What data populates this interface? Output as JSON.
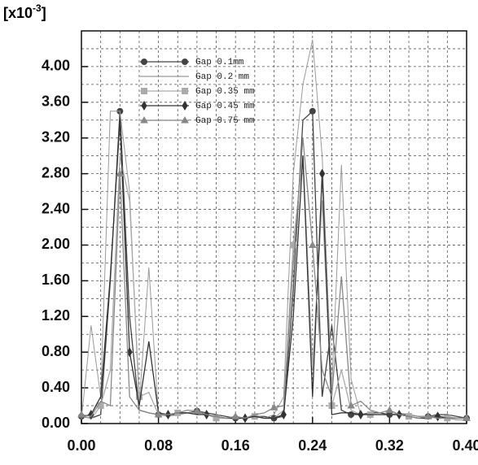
{
  "chart_data": {
    "type": "line",
    "y_label_prefix": "[x10",
    "y_label_exponent": "-3",
    "y_label_suffix": "]",
    "x": [
      0,
      0.01,
      0.02,
      0.03,
      0.04,
      0.05,
      0.06,
      0.07,
      0.08,
      0.09,
      0.1,
      0.11,
      0.12,
      0.13,
      0.14,
      0.15,
      0.16,
      0.17,
      0.18,
      0.19,
      0.2,
      0.21,
      0.22,
      0.23,
      0.24,
      0.25,
      0.26,
      0.27,
      0.28,
      0.29,
      0.3,
      0.31,
      0.32,
      0.33,
      0.34,
      0.35,
      0.36,
      0.37,
      0.38,
      0.39,
      0.4
    ],
    "series": [
      {
        "name": "Gap 0.1mm",
        "color": "#444444",
        "marker": "circle",
        "values": [
          0.08,
          0.06,
          0.1,
          1.6,
          3.5,
          1.2,
          0.15,
          0.12,
          0.1,
          0.1,
          0.1,
          0.12,
          0.14,
          0.12,
          0.1,
          0.08,
          0.06,
          0.06,
          0.08,
          0.08,
          0.06,
          0.08,
          1.5,
          3.4,
          3.5,
          0.3,
          1.1,
          0.15,
          0.1,
          0.1,
          0.12,
          0.12,
          0.1,
          0.1,
          0.1,
          0.08,
          0.08,
          0.1,
          0.1,
          0.08,
          0.06
        ]
      },
      {
        "name": "Gap 0.2 mm",
        "color": "#9a9a9a",
        "marker": "none",
        "values": [
          0.05,
          1.1,
          0.3,
          3.5,
          3.5,
          2.6,
          0.2,
          1.75,
          0.1,
          0.08,
          0.1,
          0.12,
          0.1,
          0.1,
          0.08,
          0.06,
          0.06,
          0.06,
          0.1,
          0.06,
          0.1,
          0.3,
          2.8,
          3.8,
          4.3,
          3.0,
          0.4,
          2.9,
          0.5,
          0.1,
          0.1,
          0.1,
          0.1,
          0.12,
          0.1,
          0.08,
          0.08,
          0.08,
          0.08,
          0.06,
          0.06
        ]
      },
      {
        "name": "Gap 0.35 mm",
        "color": "#aaaaaa",
        "marker": "square",
        "values": [
          0.1,
          0.05,
          0.2,
          0.6,
          3.0,
          2.5,
          0.3,
          0.35,
          0.1,
          0.1,
          0.12,
          0.12,
          0.12,
          0.1,
          0.06,
          0.06,
          0.06,
          0.06,
          0.08,
          0.06,
          0.06,
          0.15,
          2.0,
          3.0,
          0.62,
          2.5,
          0.2,
          0.6,
          0.15,
          0.1,
          0.1,
          0.1,
          0.1,
          0.1,
          0.08,
          0.06,
          0.08,
          0.06,
          0.06,
          0.04,
          0.04
        ]
      },
      {
        "name": "Gap 0.45 mm",
        "color": "#333333",
        "marker": "diamond",
        "values": [
          0.08,
          0.1,
          0.3,
          1.65,
          3.4,
          0.8,
          0.2,
          0.92,
          0.12,
          0.1,
          0.12,
          0.12,
          0.1,
          0.1,
          0.08,
          0.06,
          0.06,
          0.06,
          0.08,
          0.06,
          0.06,
          0.1,
          1.2,
          3.0,
          0.3,
          2.8,
          0.1,
          0.12,
          0.12,
          0.1,
          0.1,
          0.1,
          0.1,
          0.1,
          0.08,
          0.06,
          0.06,
          0.08,
          0.06,
          0.06,
          0.06
        ]
      },
      {
        "name": "Gap 0.75 mm",
        "color": "#888888",
        "marker": "triangle",
        "values": [
          0.1,
          0.08,
          0.25,
          0.2,
          2.8,
          0.3,
          0.15,
          0.12,
          0.1,
          0.1,
          0.12,
          0.15,
          0.14,
          0.1,
          0.08,
          0.06,
          0.08,
          0.06,
          0.1,
          0.12,
          0.18,
          0.2,
          1.8,
          3.2,
          2.0,
          0.6,
          0.3,
          1.65,
          0.2,
          0.25,
          0.15,
          0.12,
          0.15,
          0.1,
          0.08,
          0.06,
          0.08,
          0.06,
          0.06,
          0.06,
          0.06
        ]
      }
    ],
    "xlim": [
      0,
      0.4
    ],
    "ylim": [
      0,
      4.4
    ],
    "xticks": [
      {
        "value": 0,
        "label": "0.00"
      },
      {
        "value": 0.08,
        "label": "0.08"
      },
      {
        "value": 0.16,
        "label": "0.16"
      },
      {
        "value": 0.24,
        "label": "0.24"
      },
      {
        "value": 0.32,
        "label": "0.32"
      },
      {
        "value": 0.4,
        "label": "0.40"
      }
    ],
    "yticks": [
      {
        "value": 0,
        "label": "0.00"
      },
      {
        "value": 0.4,
        "label": "0.40"
      },
      {
        "value": 0.8,
        "label": "0.80"
      },
      {
        "value": 1.2,
        "label": "1.20"
      },
      {
        "value": 1.6,
        "label": "1.60"
      },
      {
        "value": 2,
        "label": "2.00"
      },
      {
        "value": 2.4,
        "label": "2.40"
      },
      {
        "value": 2.8,
        "label": "2.80"
      },
      {
        "value": 3.2,
        "label": "3.20"
      },
      {
        "value": 3.6,
        "label": "3.60"
      },
      {
        "value": 4,
        "label": "4.00"
      }
    ],
    "xgrid_ticks": [
      0.02,
      0.04,
      0.06,
      0.08,
      0.1,
      0.12,
      0.14,
      0.16,
      0.18,
      0.2,
      0.22,
      0.24,
      0.26,
      0.28,
      0.3,
      0.32,
      0.34,
      0.36,
      0.38
    ],
    "ygrid_ticks": [
      0.2,
      0.4,
      0.6,
      0.8,
      1,
      1.2,
      1.4,
      1.6,
      1.8,
      2,
      2.2,
      2.4,
      2.6,
      2.8,
      3,
      3.2,
      3.4,
      3.6,
      3.8,
      4,
      4.2
    ],
    "grid": true,
    "legend": "upper left"
  }
}
